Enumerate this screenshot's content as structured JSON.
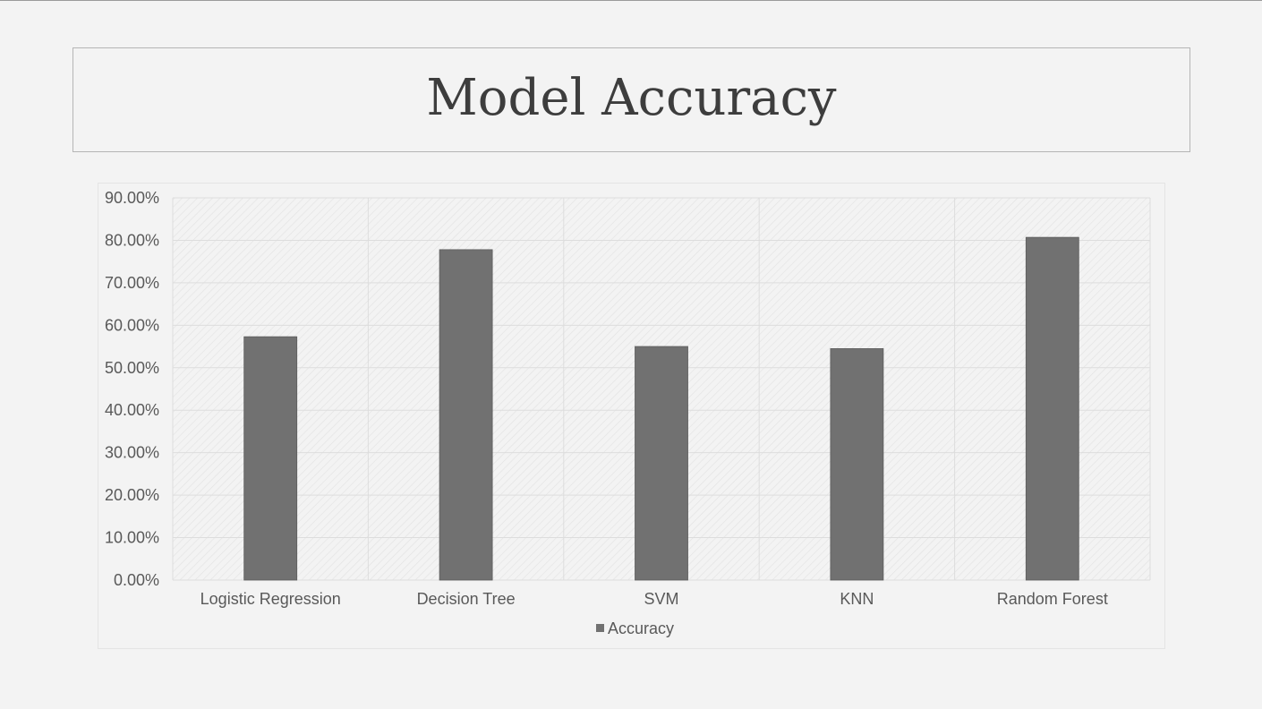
{
  "slide": {
    "title": "Model Accuracy"
  },
  "colors": {
    "bar": "#717171",
    "grid": "#dddddd",
    "tick_text": "#595959",
    "background": "#f3f3f3"
  },
  "chart_data": {
    "type": "bar",
    "categories": [
      "Logistic Regression",
      "Decision Tree",
      "SVM",
      "KNN",
      "Random Forest"
    ],
    "series": [
      {
        "name": "Accuracy",
        "values": [
          0.573,
          0.778,
          0.55,
          0.545,
          0.807
        ]
      }
    ],
    "ylim": [
      0,
      0.9
    ],
    "yticks": [
      0,
      0.1,
      0.2,
      0.3,
      0.4,
      0.5,
      0.6,
      0.7,
      0.8,
      0.9
    ],
    "ytick_labels": [
      "0.00%",
      "10.00%",
      "20.00%",
      "30.00%",
      "40.00%",
      "50.00%",
      "60.00%",
      "70.00%",
      "80.00%",
      "90.00%"
    ],
    "grid": true,
    "legend": "bottom"
  }
}
